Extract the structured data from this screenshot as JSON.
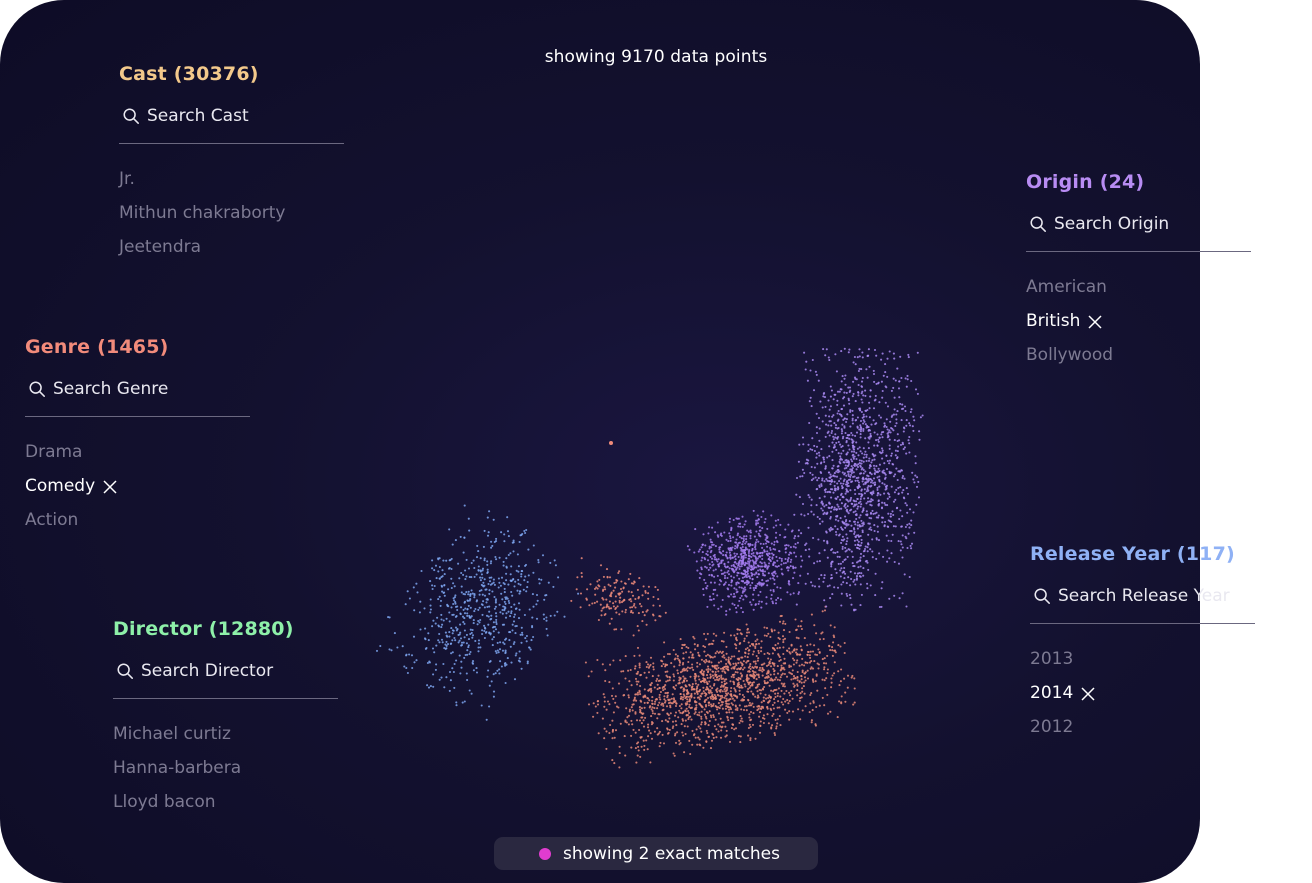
{
  "headline": "showing 9170 data points",
  "match_status": {
    "text": "showing 2 exact matches",
    "dot_color": "#e03ccf"
  },
  "panels": {
    "cast": {
      "title": "Cast (30376)",
      "color": "#f3c98b",
      "search_placeholder": "Search Cast",
      "search_icon": "search-icon",
      "options": [
        {
          "label": "Jr.",
          "selected": false
        },
        {
          "label": "Mithun chakraborty",
          "selected": false
        },
        {
          "label": "Jeetendra",
          "selected": false
        }
      ]
    },
    "genre": {
      "title": "Genre (1465)",
      "color": "#f28b7b",
      "search_placeholder": "Search Genre",
      "search_icon": "search-icon",
      "options": [
        {
          "label": "Drama",
          "selected": false
        },
        {
          "label": "Comedy",
          "selected": true
        },
        {
          "label": "Action",
          "selected": false
        }
      ]
    },
    "director": {
      "title": "Director (12880)",
      "color": "#8ef0a9",
      "search_placeholder": "Search Director",
      "search_icon": "search-icon",
      "options": [
        {
          "label": "Michael curtiz",
          "selected": false
        },
        {
          "label": "Hanna-barbera",
          "selected": false
        },
        {
          "label": "Lloyd bacon",
          "selected": false
        }
      ]
    },
    "origin": {
      "title": "Origin (24)",
      "color": "#b88cf3",
      "search_placeholder": "Search Origin",
      "search_icon": "search-icon",
      "options": [
        {
          "label": "American",
          "selected": false
        },
        {
          "label": "British",
          "selected": true
        },
        {
          "label": "Bollywood",
          "selected": false
        }
      ]
    },
    "release_year": {
      "title": "Release Year (117)",
      "color": "#8fb1f5",
      "search_placeholder": "Search Release Year",
      "search_icon": "search-icon",
      "options": [
        {
          "label": "2013",
          "selected": false
        },
        {
          "label": "2014",
          "selected": true
        },
        {
          "label": "2012",
          "selected": false
        }
      ]
    }
  },
  "scatter": {
    "clusters": [
      {
        "color": "#7ea6f0"
      },
      {
        "color": "#ef8b7a"
      },
      {
        "color": "#e98a78"
      },
      {
        "color": "#a57df0"
      },
      {
        "color": "#a98af2"
      }
    ]
  }
}
